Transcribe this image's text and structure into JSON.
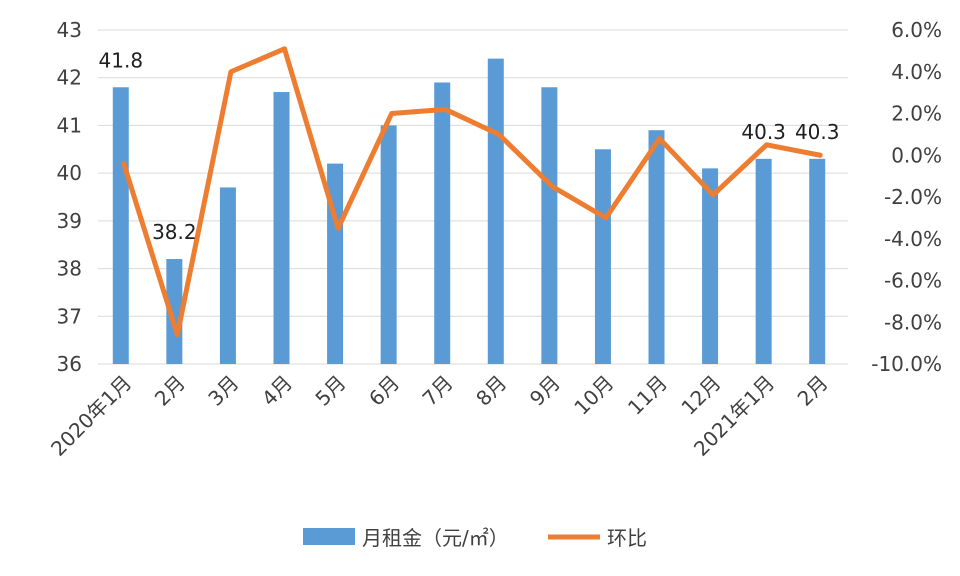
{
  "chart_data": {
    "type": "bar",
    "categories": [
      "2020年1月",
      "2月",
      "3月",
      "4月",
      "5月",
      "6月",
      "7月",
      "8月",
      "9月",
      "10月",
      "11月",
      "12月",
      "2021年1月",
      "2月"
    ],
    "series": [
      {
        "name": "月租金（元/㎡）",
        "type": "bar",
        "axis": "left",
        "values": [
          41.8,
          38.2,
          39.7,
          41.7,
          40.2,
          41.0,
          41.9,
          42.4,
          41.8,
          40.5,
          40.9,
          40.1,
          40.3,
          40.3
        ]
      },
      {
        "name": "环比",
        "type": "line",
        "axis": "right",
        "values": [
          -0.4,
          -8.6,
          4.0,
          5.1,
          -3.5,
          2.0,
          2.2,
          1.0,
          -1.5,
          -3.0,
          0.8,
          -1.9,
          0.5,
          0.0
        ]
      }
    ],
    "data_labels": [
      {
        "index": 0,
        "text": "41.8"
      },
      {
        "index": 1,
        "text": "38.2"
      },
      {
        "index": 12,
        "text": "40.3"
      },
      {
        "index": 13,
        "text": "40.3"
      }
    ],
    "y_left": {
      "min": 36,
      "max": 43,
      "ticks": [
        "36",
        "37",
        "38",
        "39",
        "40",
        "41",
        "42",
        "43"
      ]
    },
    "y_right": {
      "min": -10,
      "max": 6,
      "ticks": [
        "-10.0%",
        "-8.0%",
        "-6.0%",
        "-4.0%",
        "-2.0%",
        "0.0%",
        "2.0%",
        "4.0%",
        "6.0%"
      ]
    },
    "grid": true,
    "legend_position": "bottom",
    "colors": {
      "bar": "#5B9BD5",
      "line": "#ED7D31",
      "grid": "#D9D9D9",
      "text": "#404040"
    }
  }
}
